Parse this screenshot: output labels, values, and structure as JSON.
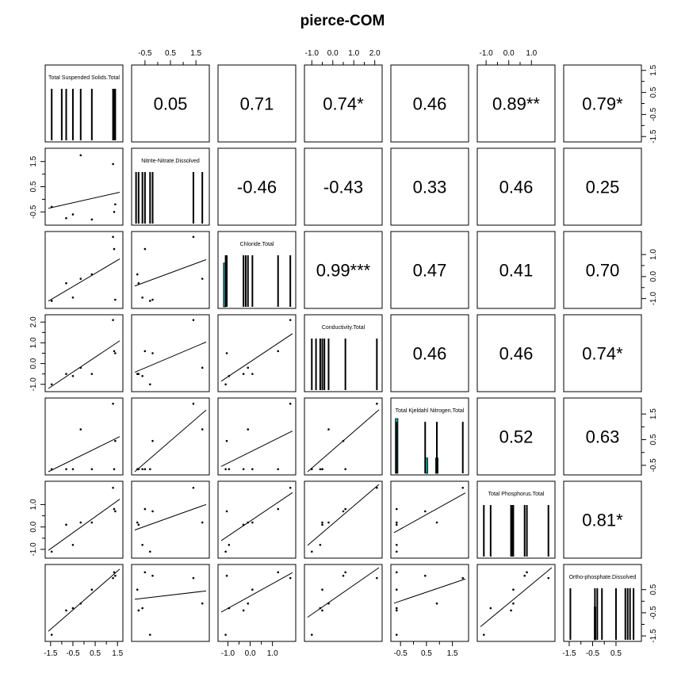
{
  "title": "pierce-COM",
  "variables": [
    "Total Suspended Solids.Total",
    "Nitrite-Nitrate.Dissolved",
    "Chloride.Total",
    "Conductivity.Total",
    "Total Kjeldahl Nitrogen.Total",
    "Total Phosphorus.Total",
    "Ortho-phosphate.Dissolved"
  ],
  "chart_data": {
    "type": "scatter",
    "title": "pierce-COM",
    "layout": "scatterplot-matrix",
    "lower_panels": "scatter with least-squares fit line",
    "diagonal_panels": "histogram with rug lines",
    "upper_panels": "correlation coefficient with significance stars",
    "series": [
      {
        "name": "Total Suspended Solids.Total",
        "values": [
          -1.45,
          -0.8,
          -0.15,
          -0.5,
          0.35,
          1.3,
          1.35,
          1.4
        ]
      },
      {
        "name": "Nitrite-Nitrate.Dissolved",
        "values": [
          -0.3,
          -0.75,
          1.75,
          -0.6,
          -0.8,
          1.4,
          -0.5,
          -0.2
        ]
      },
      {
        "name": "Chloride.Total",
        "values": [
          -1.1,
          -0.3,
          -0.1,
          -0.95,
          0.1,
          1.8,
          1.25,
          -1.05
        ]
      },
      {
        "name": "Conductivity.Total",
        "values": [
          -1.0,
          -0.5,
          -0.2,
          -0.6,
          -0.5,
          2.1,
          0.6,
          0.5
        ]
      },
      {
        "name": "Total Kjeldahl Nitrogen.Total",
        "values": [
          -0.65,
          -0.65,
          0.9,
          -0.65,
          -0.65,
          1.9,
          -0.65,
          0.45
        ]
      },
      {
        "name": "Total Phosphorus.Total",
        "values": [
          -1.1,
          0.1,
          0.2,
          -0.8,
          0.2,
          1.75,
          0.8,
          0.7
        ]
      },
      {
        "name": "Ortho-phosphate.Dissolved",
        "values": [
          -1.45,
          -0.4,
          -0.1,
          -0.3,
          0.5,
          1.0,
          1.25,
          1.1
        ]
      }
    ],
    "correlations": [
      {
        "row": 0,
        "col": 1,
        "text": "0.05"
      },
      {
        "row": 0,
        "col": 2,
        "text": "0.71"
      },
      {
        "row": 0,
        "col": 3,
        "text": "0.74*"
      },
      {
        "row": 0,
        "col": 4,
        "text": "0.46"
      },
      {
        "row": 0,
        "col": 5,
        "text": "0.89**"
      },
      {
        "row": 0,
        "col": 6,
        "text": "0.79*"
      },
      {
        "row": 1,
        "col": 2,
        "text": "-0.46"
      },
      {
        "row": 1,
        "col": 3,
        "text": "-0.43"
      },
      {
        "row": 1,
        "col": 4,
        "text": "0.33"
      },
      {
        "row": 1,
        "col": 5,
        "text": "0.46"
      },
      {
        "row": 1,
        "col": 6,
        "text": "0.25"
      },
      {
        "row": 2,
        "col": 3,
        "text": "0.99***"
      },
      {
        "row": 2,
        "col": 4,
        "text": "0.47"
      },
      {
        "row": 2,
        "col": 5,
        "text": "0.41"
      },
      {
        "row": 2,
        "col": 6,
        "text": "0.70"
      },
      {
        "row": 3,
        "col": 4,
        "text": "0.46"
      },
      {
        "row": 3,
        "col": 5,
        "text": "0.46"
      },
      {
        "row": 3,
        "col": 6,
        "text": "0.74*"
      },
      {
        "row": 4,
        "col": 5,
        "text": "0.52"
      },
      {
        "row": 4,
        "col": 6,
        "text": "0.63"
      },
      {
        "row": 5,
        "col": 6,
        "text": "0.81*"
      }
    ],
    "ranges": [
      [
        -1.6,
        1.6
      ],
      [
        -0.9,
        1.9
      ],
      [
        -1.3,
        1.9
      ],
      [
        -1.2,
        2.2
      ],
      [
        -0.75,
        2.0
      ],
      [
        -1.25,
        1.9
      ],
      [
        -1.6,
        1.45
      ]
    ],
    "histograms": [
      {
        "bars": [],
        "rug": [
          -1.45,
          -1.0,
          -0.8,
          -0.5,
          -0.15,
          0.35,
          1.3,
          1.35,
          1.4
        ]
      },
      {
        "bars": [],
        "rug": [
          -0.85,
          -0.75,
          -0.6,
          -0.5,
          -0.3,
          -0.2,
          1.4,
          1.75
        ]
      },
      {
        "bars": [
          {
            "x0": -1.2,
            "x1": -1.1,
            "h": 0.8
          }
        ],
        "rug": [
          -1.1,
          -1.05,
          -0.3,
          -0.2,
          -0.1,
          0.1,
          1.25,
          1.8
        ]
      },
      {
        "bars": [],
        "rug": [
          -1.0,
          -0.8,
          -0.6,
          -0.5,
          -0.4,
          -0.2,
          0.6,
          2.1
        ]
      },
      {
        "bars": [
          {
            "x0": -0.7,
            "x1": -0.6,
            "h": 1.0
          },
          {
            "x0": 0.45,
            "x1": 0.55,
            "h": 0.28
          },
          {
            "x0": 0.85,
            "x1": 0.95,
            "h": 0.28
          }
        ],
        "rug": [
          -0.65,
          0.45,
          0.9,
          1.9
        ]
      },
      {
        "bars": [],
        "rug": [
          -1.1,
          -0.8,
          0.1,
          0.15,
          0.2,
          0.7,
          0.8,
          1.75
        ]
      },
      {
        "bars": [
          {
            "x0": -0.43,
            "x1": -0.37,
            "h": 0.6
          }
        ],
        "rug": [
          -1.45,
          -0.4,
          -0.3,
          -0.1,
          0.5,
          0.9,
          1.0,
          1.1,
          1.25
        ]
      }
    ],
    "axes": {
      "top": [
        {
          "col": 1,
          "ticks": [
            -0.5,
            0.5,
            1.5
          ],
          "labels": [
            "-0.5",
            "0.5",
            "1.5"
          ],
          "minor": [
            0.0,
            1.0
          ]
        },
        {
          "col": 3,
          "ticks": [
            -1.0,
            0.0,
            1.0,
            2.0
          ],
          "labels": [
            "-1.0",
            "0.0",
            "1.0",
            "2.0"
          ],
          "minor": [
            -0.5,
            0.5,
            1.5
          ]
        },
        {
          "col": 5,
          "ticks": [
            -1.0,
            0.0,
            1.0
          ],
          "labels": [
            "-1.0",
            "0.0",
            "1.0"
          ],
          "minor": [
            -0.5,
            0.5
          ]
        }
      ],
      "bottom": [
        {
          "col": 0,
          "ticks": [
            -1.5,
            -0.5,
            0.5,
            1.5
          ],
          "labels": [
            "-1.5",
            "-0.5",
            "0.5",
            "1.5"
          ],
          "minor": [
            -1.0,
            0.0,
            1.0
          ]
        },
        {
          "col": 2,
          "ticks": [
            -1.0,
            0.0,
            1.0
          ],
          "labels": [
            "-1.0",
            "0.0",
            "1.0"
          ],
          "minor": [
            -0.5,
            0.5
          ]
        },
        {
          "col": 4,
          "ticks": [
            -0.5,
            0.5,
            1.5
          ],
          "labels": [
            "-0.5",
            "0.5",
            "1.5"
          ],
          "minor": [
            0.0,
            1.0
          ]
        },
        {
          "col": 6,
          "ticks": [
            -1.5,
            -0.5,
            0.5
          ],
          "labels": [
            "-1.5",
            "-0.5",
            "0.5"
          ],
          "minor": [
            -1.0,
            0.0
          ]
        }
      ],
      "left": [
        {
          "row": 1,
          "ticks": [
            -0.5,
            0.5,
            1.5
          ],
          "labels": [
            "-0.5",
            "0.5",
            "1.5"
          ],
          "minor": [
            0.0,
            1.0
          ]
        },
        {
          "row": 3,
          "ticks": [
            -1.0,
            0.0,
            1.0,
            2.0
          ],
          "labels": [
            "-1.0",
            "0.0",
            "1.0",
            "2.0"
          ],
          "minor": [
            -0.5,
            0.5,
            1.5
          ]
        },
        {
          "row": 5,
          "ticks": [
            -1.0,
            0.0,
            1.0
          ],
          "labels": [
            "-1.0",
            "0.0",
            "1.0"
          ],
          "minor": [
            -0.5,
            0.5
          ]
        }
      ],
      "right": [
        {
          "row": 0,
          "ticks": [
            -1.5,
            -0.5,
            0.5,
            1.5
          ],
          "labels": [
            "-1.5",
            "-0.5",
            "0.5",
            "1.5"
          ],
          "minor": [
            -1.0,
            0.0,
            1.0
          ]
        },
        {
          "row": 2,
          "ticks": [
            -1.0,
            0.0,
            1.0
          ],
          "labels": [
            "-1.0",
            "0.0",
            "1.0"
          ],
          "minor": [
            -0.5,
            0.5
          ]
        },
        {
          "row": 4,
          "ticks": [
            -0.5,
            0.5,
            1.5
          ],
          "labels": [
            "-0.5",
            "0.5",
            "1.5"
          ],
          "minor": [
            0.0,
            1.0
          ]
        },
        {
          "row": 6,
          "ticks": [
            -1.5,
            -0.5,
            0.5
          ],
          "labels": [
            "-1.5",
            "-0.5",
            "0.5"
          ],
          "minor": [
            -1.0,
            0.0
          ]
        }
      ]
    }
  }
}
